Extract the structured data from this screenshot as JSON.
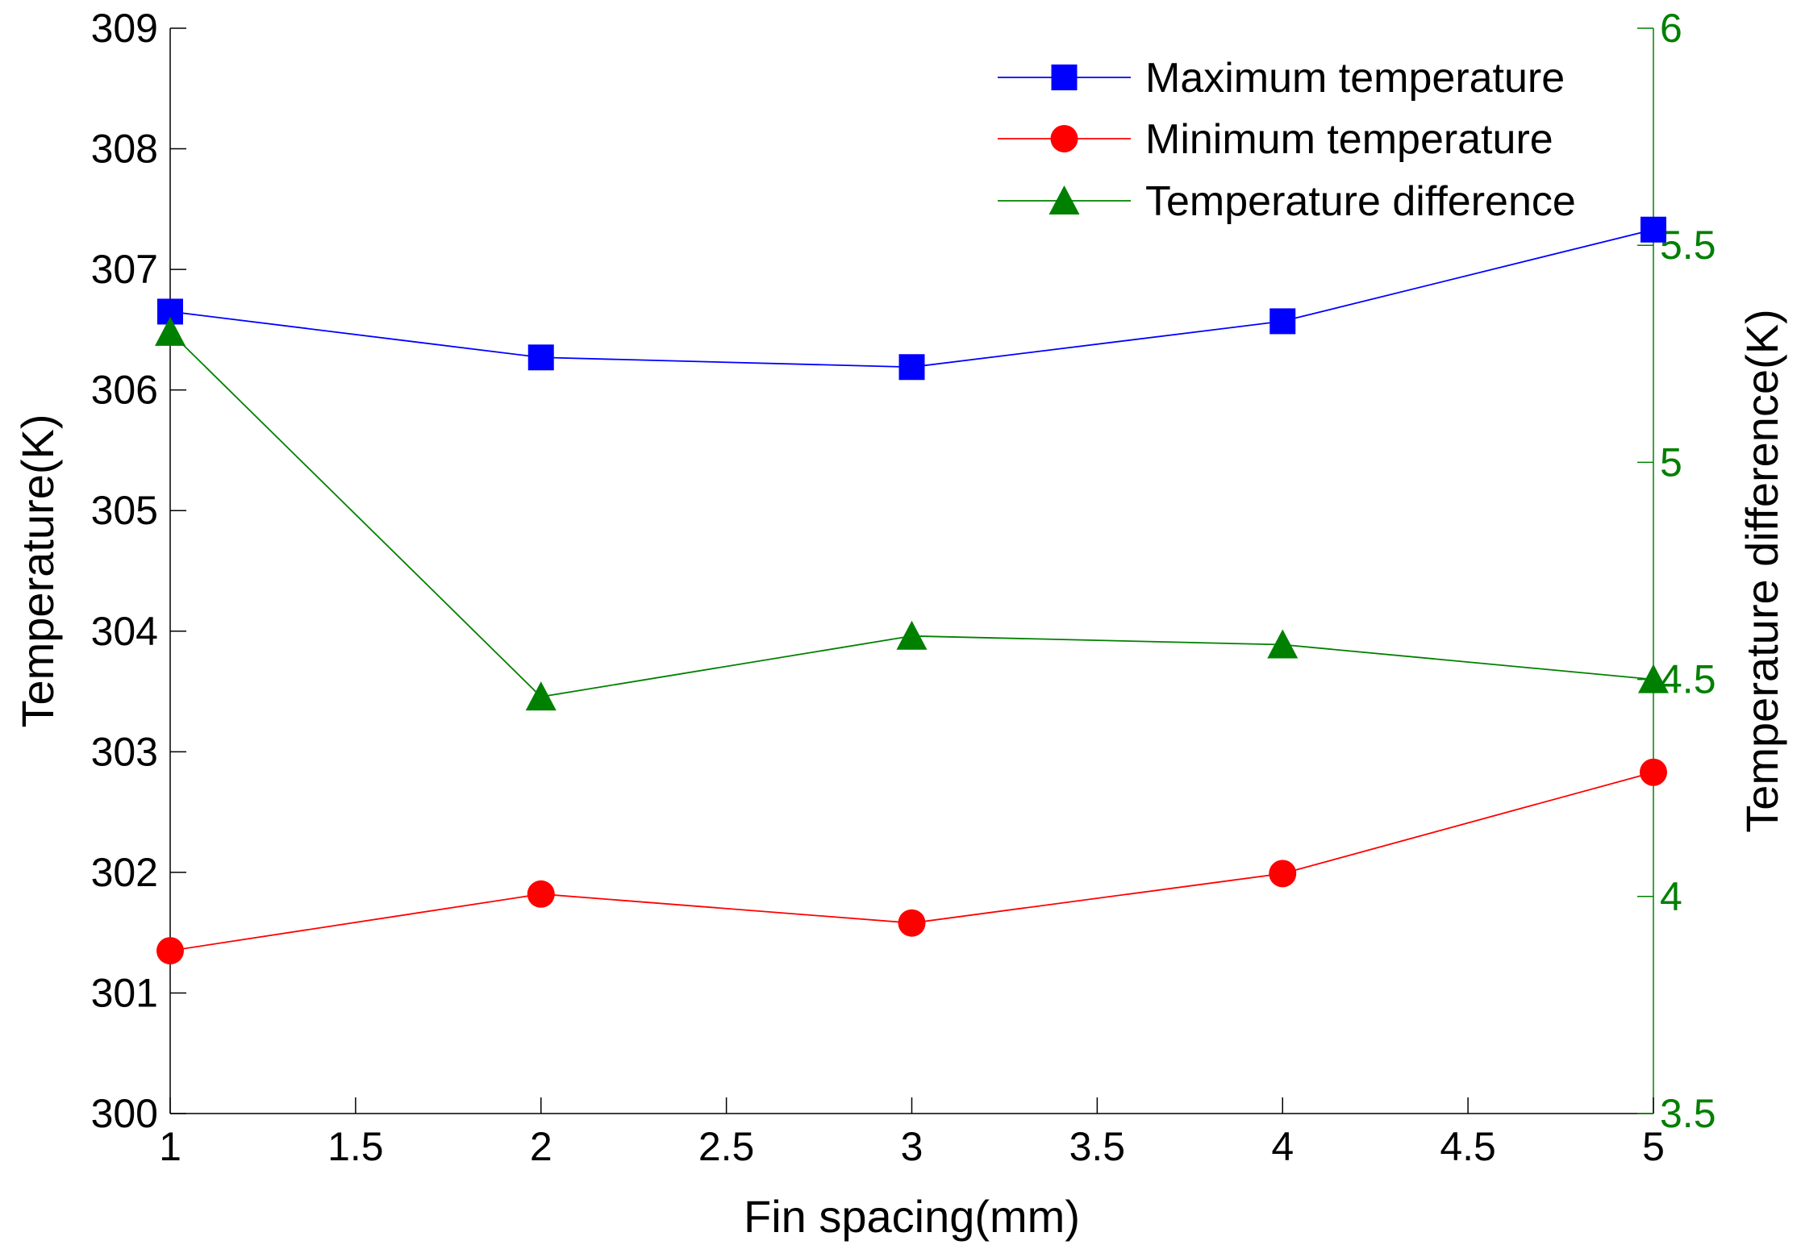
{
  "chart_data": {
    "type": "line",
    "title": "",
    "xlabel": "Fin spacing(mm)",
    "ylabel": "Temperature(K)",
    "ylabel_right": "Temperature difference(K)",
    "x": [
      1,
      2,
      3,
      4,
      5
    ],
    "xlim": [
      1,
      5
    ],
    "ylim": [
      300,
      309
    ],
    "ylim_right": [
      3.5,
      6
    ],
    "xticks": [
      1,
      1.5,
      2,
      2.5,
      3,
      3.5,
      4,
      4.5,
      5
    ],
    "yticks": [
      300,
      301,
      302,
      303,
      304,
      305,
      306,
      307,
      308,
      309
    ],
    "yticks_right": [
      3.5,
      4,
      4.5,
      5,
      5.5,
      6
    ],
    "grid": false,
    "legend_position": "top-right",
    "series": [
      {
        "name": "Maximum temperature",
        "axis": "left",
        "marker": "square",
        "color": "#0000ff",
        "values": [
          306.65,
          306.27,
          306.19,
          306.57,
          307.33
        ]
      },
      {
        "name": "Minimum temperature",
        "axis": "left",
        "marker": "circle",
        "color": "#ff0000",
        "values": [
          301.35,
          301.82,
          301.58,
          301.99,
          302.83
        ]
      },
      {
        "name": "Temperature difference",
        "axis": "right",
        "marker": "triangle",
        "color": "#008000",
        "values": [
          5.3,
          4.46,
          4.6,
          4.58,
          4.5
        ]
      }
    ],
    "right_axis_color": "#008000"
  }
}
